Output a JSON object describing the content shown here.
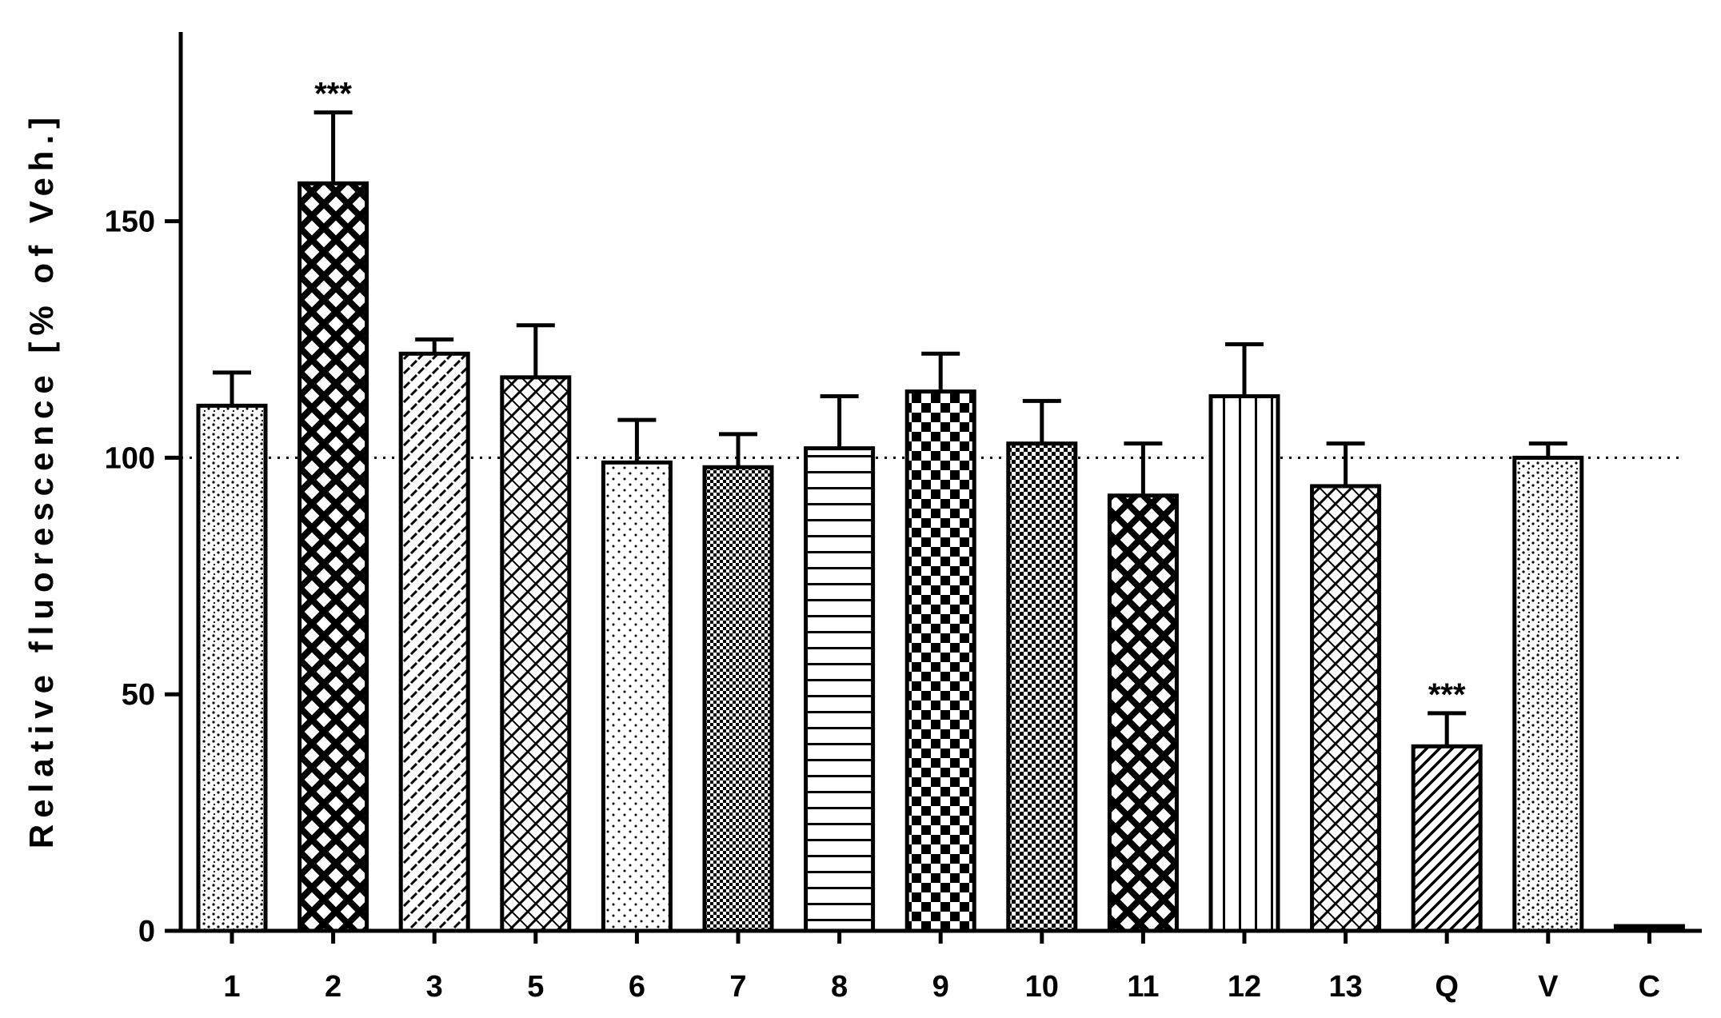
{
  "chart_data": {
    "type": "bar",
    "ylabel": "Relative fluorescence [% of Veh.]",
    "xlabel": "",
    "ylim": [
      0,
      190
    ],
    "yticks": [
      0,
      50,
      100,
      150
    ],
    "reference_line": 100,
    "categories": [
      "1",
      "2",
      "3",
      "5",
      "6",
      "7",
      "8",
      "9",
      "10",
      "11",
      "12",
      "13",
      "Q",
      "V",
      "C"
    ],
    "values": [
      111,
      158,
      122,
      117,
      99,
      98,
      102,
      114,
      103,
      92,
      113,
      94,
      39,
      100,
      1
    ],
    "errors": [
      7,
      15,
      3,
      11,
      9,
      7,
      11,
      8,
      9,
      11,
      11,
      9,
      7,
      3,
      0.5
    ],
    "annotations": [
      "",
      "***",
      "",
      "",
      "",
      "",
      "",
      "",
      "",
      "",
      "",
      "",
      "***",
      "",
      ""
    ],
    "fill_patterns": [
      "dots-wavy",
      "crosshatch-large",
      "diag-dash",
      "diag-cross",
      "dots-sparse",
      "checker-small",
      "horizontal-lines",
      "checker-large",
      "checker-medium",
      "crosshatch-large",
      "vertical-lines",
      "diag-cross",
      "diagonal-lines",
      "dots-wavy",
      "solid"
    ]
  }
}
